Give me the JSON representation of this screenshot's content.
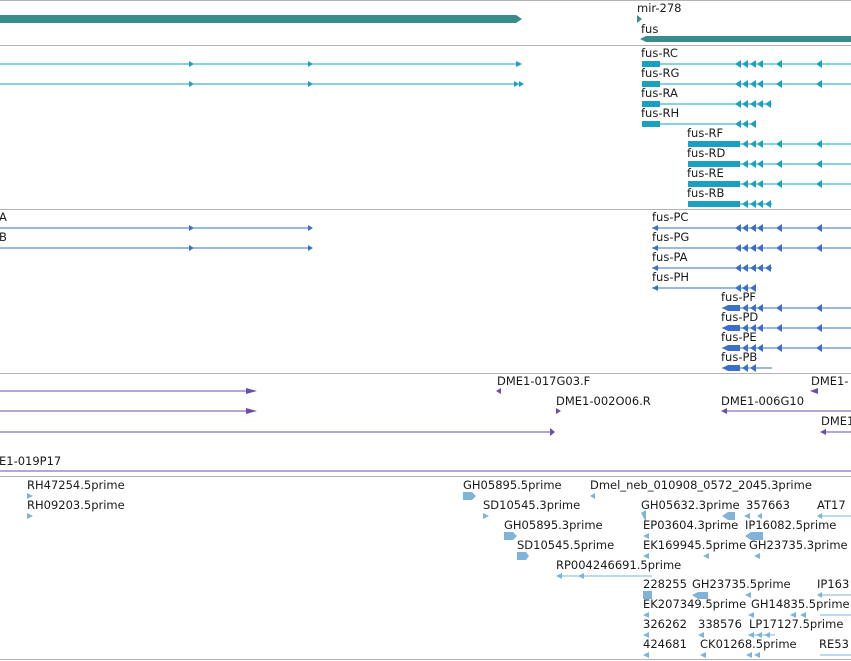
{
  "colors": {
    "gene": "#3a8c8c",
    "transcript": "#1aa0c0",
    "protein": "#3b6fc9",
    "clone": "#6b4fa6",
    "est": "#7fb3d8",
    "separator": "#b4b4b4"
  },
  "tracks": {
    "genes": {
      "items": [
        {
          "id": "mir-278",
          "label": "mir-278"
        },
        {
          "id": "fus",
          "label": "fus"
        }
      ]
    },
    "transcripts": {
      "items": [
        {
          "id": "fus-RC",
          "label": "fus-RC"
        },
        {
          "id": "fus-RG",
          "label": "fus-RG"
        },
        {
          "id": "fus-RA",
          "label": "fus-RA"
        },
        {
          "id": "fus-RH",
          "label": "fus-RH"
        },
        {
          "id": "fus-RF",
          "label": "fus-RF"
        },
        {
          "id": "fus-RD",
          "label": "fus-RD"
        },
        {
          "id": "fus-RE",
          "label": "fus-RE"
        },
        {
          "id": "fus-RB",
          "label": "fus-RB"
        }
      ]
    },
    "proteins": {
      "items": [
        {
          "id": "left-A",
          "label": "A"
        },
        {
          "id": "left-B",
          "label": "B"
        },
        {
          "id": "fus-PC",
          "label": "fus-PC"
        },
        {
          "id": "fus-PG",
          "label": "fus-PG"
        },
        {
          "id": "fus-PA",
          "label": "fus-PA"
        },
        {
          "id": "fus-PH",
          "label": "fus-PH"
        },
        {
          "id": "fus-PF",
          "label": "fus-PF"
        },
        {
          "id": "fus-PD",
          "label": "fus-PD"
        },
        {
          "id": "fus-PE",
          "label": "fus-PE"
        },
        {
          "id": "fus-PB",
          "label": "fus-PB"
        }
      ]
    },
    "clones": {
      "items": [
        {
          "id": "c1",
          "label": "DME1-017G03.F"
        },
        {
          "id": "c2",
          "label": "DME1-"
        },
        {
          "id": "c3",
          "label": "DME1-002O06.R"
        },
        {
          "id": "c4",
          "label": "DME1-006G10"
        },
        {
          "id": "c5",
          "label": "DME1"
        },
        {
          "id": "c6",
          "label": "E1-019P17"
        }
      ]
    },
    "ests": {
      "items": [
        {
          "id": "e1",
          "label": "RH47254.5prime"
        },
        {
          "id": "e2",
          "label": "RH09203.5prime"
        },
        {
          "id": "e3",
          "label": "GH05895.5prime"
        },
        {
          "id": "e4",
          "label": "Dmel_neb_010908_0572_2045.3prime"
        },
        {
          "id": "e5",
          "label": "SD10545.3prime"
        },
        {
          "id": "e6",
          "label": "GH05632.3prime"
        },
        {
          "id": "e7",
          "label": "357663"
        },
        {
          "id": "e8",
          "label": "AT17"
        },
        {
          "id": "e9",
          "label": "GH05895.3prime"
        },
        {
          "id": "e10",
          "label": "EP03604.3prime"
        },
        {
          "id": "e11",
          "label": "IP16082.5prime"
        },
        {
          "id": "e12",
          "label": "SD10545.5prime"
        },
        {
          "id": "e13",
          "label": "EK169945.5prime"
        },
        {
          "id": "e14",
          "label": "GH23735.3prime"
        },
        {
          "id": "e15",
          "label": "RP004246691.5prime"
        },
        {
          "id": "e16",
          "label": "228255"
        },
        {
          "id": "e17",
          "label": "GH23735.5prime"
        },
        {
          "id": "e18",
          "label": "IP163"
        },
        {
          "id": "e19",
          "label": "EK207349.5prime"
        },
        {
          "id": "e20",
          "label": "GH14835.5prime"
        },
        {
          "id": "e21",
          "label": "326262"
        },
        {
          "id": "e22",
          "label": "338576"
        },
        {
          "id": "e23",
          "label": "LP17127.5prime"
        },
        {
          "id": "e24",
          "label": "424681"
        },
        {
          "id": "e25",
          "label": "CK01268.5prime"
        },
        {
          "id": "e26",
          "label": "RE53"
        }
      ]
    }
  }
}
